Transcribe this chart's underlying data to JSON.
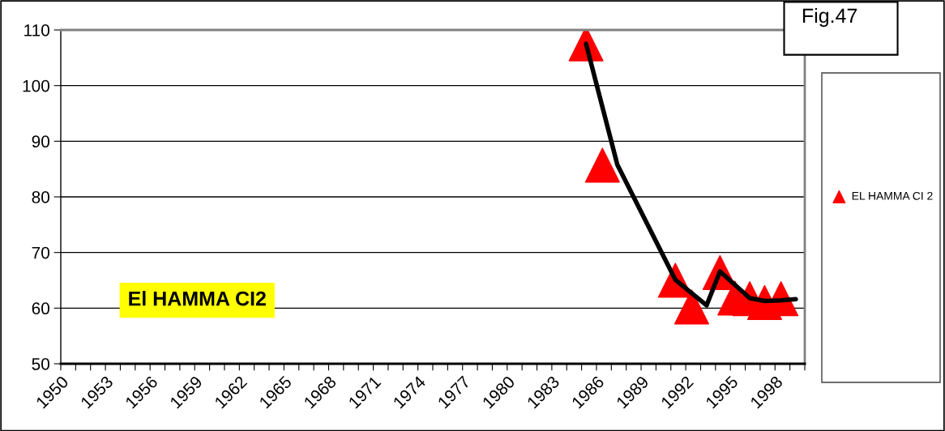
{
  "chart_data": {
    "type": "scatter",
    "annotations": [
      "Fig.47",
      "El HAMMA CI2"
    ],
    "series": [
      {
        "name": "EL HAMMA CI 2",
        "color": "#ff0000",
        "marker": "triangle",
        "x": [
          1985.3,
          1986.4,
          1991.3,
          1992.4,
          1994.3,
          1995.3,
          1996.3,
          1997.3,
          1998.4
        ],
        "values": [
          107.5,
          85.7,
          65.0,
          60.2,
          66.4,
          61.8,
          61.7,
          61.0,
          61.7
        ]
      },
      {
        "type": "line",
        "color": "#000000",
        "marker": "none",
        "line_style": "solid",
        "x": [
          1985.3,
          1987.4,
          1991.3,
          1993.4,
          1994.3,
          1996.3,
          1997.3,
          1998.4,
          1999.4
        ],
        "values": [
          107.5,
          85.8,
          65.1,
          60.5,
          66.6,
          61.8,
          61.3,
          61.4,
          61.6
        ]
      }
    ],
    "xlim": [
      1950,
      2000
    ],
    "xticks": [
      1950,
      {
        "value": 1951,
        "label": null
      },
      {
        "value": 1952,
        "label": null
      },
      1953,
      {
        "value": 1954,
        "label": null
      },
      {
        "value": 1955,
        "label": null
      },
      1956,
      {
        "value": 1957,
        "label": null
      },
      {
        "value": 1958,
        "label": null
      },
      1959,
      {
        "value": 1960,
        "label": null
      },
      {
        "value": 1961,
        "label": null
      },
      1962,
      {
        "value": 1963,
        "label": null
      },
      {
        "value": 1964,
        "label": null
      },
      1965,
      {
        "value": 1966,
        "label": null
      },
      {
        "value": 1967,
        "label": null
      },
      1968,
      {
        "value": 1969,
        "label": null
      },
      {
        "value": 1970,
        "label": null
      },
      1971,
      {
        "value": 1972,
        "label": null
      },
      {
        "value": 1973,
        "label": null
      },
      1974,
      {
        "value": 1975,
        "label": null
      },
      {
        "value": 1976,
        "label": null
      },
      1977,
      {
        "value": 1978,
        "label": null
      },
      {
        "value": 1979,
        "label": null
      },
      1980,
      {
        "value": 1981,
        "label": null
      },
      {
        "value": 1982,
        "label": null
      },
      1983,
      {
        "value": 1984,
        "label": null
      },
      {
        "value": 1985,
        "label": null
      },
      1986,
      {
        "value": 1987,
        "label": null
      },
      {
        "value": 1988,
        "label": null
      },
      1989,
      {
        "value": 1990,
        "label": null
      },
      {
        "value": 1991,
        "label": null
      },
      1992,
      {
        "value": 1993,
        "label": null
      },
      {
        "value": 1994,
        "label": null
      },
      1995,
      {
        "value": 1996,
        "label": null
      },
      {
        "value": 1997,
        "label": null
      },
      1998,
      {
        "value": 1999,
        "label": null
      },
      {
        "value": 2000,
        "label": null
      }
    ],
    "ylim": [
      50,
      110
    ],
    "yticks": [
      50,
      60,
      70,
      80,
      90,
      100,
      110
    ],
    "grid": "y",
    "legend": "right"
  }
}
